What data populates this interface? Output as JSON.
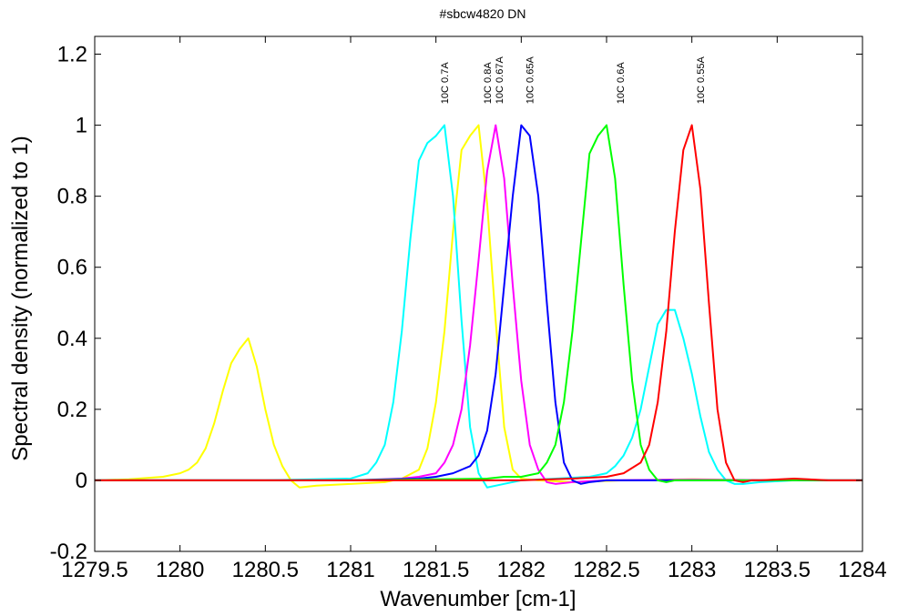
{
  "chart_data": {
    "type": "line",
    "title": "#sbcw4820 DN",
    "xlabel": "Wavenumber [cm-1]",
    "ylabel": "Spectral density (normalized to 1)",
    "xlim": [
      1279.5,
      1284
    ],
    "ylim": [
      -0.2,
      1.25
    ],
    "xticks": [
      1279.5,
      1280,
      1280.5,
      1281,
      1281.5,
      1282,
      1282.5,
      1283,
      1283.5,
      1284
    ],
    "xtick_labels": [
      "1279.5",
      "1280",
      "1280.5",
      "1281",
      "1281.5",
      "1282",
      "1282.5",
      "1283",
      "1283.5",
      "1284"
    ],
    "yticks": [
      -0.2,
      0,
      0.2,
      0.4,
      0.6,
      0.8,
      1,
      1.2
    ],
    "ytick_labels": [
      "-0.2",
      "0",
      "0.2",
      "0.4",
      "0.6",
      "0.8",
      "1",
      "1.2"
    ],
    "grid": false,
    "legend": "none",
    "annotations": [
      {
        "text": "10C 0.7A",
        "x": 1281.55,
        "y": 1.06
      },
      {
        "text": "10C 0.8A",
        "x": 1281.8,
        "y": 1.06
      },
      {
        "text": "10C 0.67A",
        "x": 1281.87,
        "y": 1.06
      },
      {
        "text": "10C 0.65A",
        "x": 1282.05,
        "y": 1.06
      },
      {
        "text": "10C 0.6A",
        "x": 1282.58,
        "y": 1.06
      },
      {
        "text": "10C 0.55A",
        "x": 1283.05,
        "y": 1.06
      }
    ],
    "series": [
      {
        "color": "#ffff00",
        "x": [
          1279.5,
          1279.7,
          1279.9,
          1280.0,
          1280.05,
          1280.1,
          1280.15,
          1280.2,
          1280.25,
          1280.3,
          1280.35,
          1280.4,
          1280.45,
          1280.5,
          1280.55,
          1280.6,
          1280.65,
          1280.7,
          1280.8,
          1281.0,
          1281.2,
          1281.3,
          1281.4,
          1281.45,
          1281.5,
          1281.55,
          1281.6,
          1281.65,
          1281.7,
          1281.75,
          1281.8,
          1281.85,
          1281.9,
          1281.95,
          1282.0,
          1282.1,
          1282.3,
          1282.6,
          1283.0,
          1283.5,
          1284.0
        ],
        "y": [
          0.0,
          0.003,
          0.01,
          0.02,
          0.03,
          0.05,
          0.09,
          0.16,
          0.25,
          0.33,
          0.37,
          0.4,
          0.32,
          0.2,
          0.1,
          0.04,
          0.0,
          -0.02,
          -0.015,
          -0.01,
          -0.005,
          0.005,
          0.03,
          0.09,
          0.22,
          0.42,
          0.7,
          0.93,
          0.97,
          1.0,
          0.78,
          0.45,
          0.15,
          0.03,
          0.005,
          0.0,
          -0.005,
          0.0,
          0.003,
          0.0,
          0.0
        ]
      },
      {
        "color": "#00ffff",
        "x": [
          1279.5,
          1280.0,
          1280.5,
          1281.0,
          1281.1,
          1281.15,
          1281.2,
          1281.25,
          1281.3,
          1281.35,
          1281.4,
          1281.45,
          1281.5,
          1281.55,
          1281.6,
          1281.65,
          1281.7,
          1281.75,
          1281.8,
          1281.9,
          1282.0,
          1282.2,
          1282.4,
          1282.5,
          1282.55,
          1282.6,
          1282.65,
          1282.7,
          1282.75,
          1282.8,
          1282.85,
          1282.9,
          1282.95,
          1283.0,
          1283.05,
          1283.1,
          1283.15,
          1283.2,
          1283.25,
          1283.3,
          1283.4,
          1283.6,
          1284.0
        ],
        "y": [
          0.0,
          0.0,
          0.0,
          0.005,
          0.02,
          0.05,
          0.1,
          0.22,
          0.42,
          0.68,
          0.9,
          0.95,
          0.97,
          1.0,
          0.8,
          0.45,
          0.15,
          0.02,
          -0.02,
          -0.01,
          0.0,
          0.005,
          0.01,
          0.02,
          0.04,
          0.07,
          0.12,
          0.2,
          0.32,
          0.44,
          0.48,
          0.48,
          0.4,
          0.3,
          0.18,
          0.08,
          0.03,
          0.0,
          -0.01,
          -0.01,
          -0.005,
          0.0,
          0.0
        ]
      },
      {
        "color": "#ff00ff",
        "x": [
          1279.5,
          1280.0,
          1280.5,
          1281.0,
          1281.3,
          1281.4,
          1281.5,
          1281.55,
          1281.6,
          1281.65,
          1281.7,
          1281.75,
          1281.8,
          1281.85,
          1281.9,
          1281.95,
          1282.0,
          1282.05,
          1282.1,
          1282.15,
          1282.2,
          1282.3,
          1282.5,
          1283.0,
          1283.5,
          1284.0
        ],
        "y": [
          0.0,
          0.0,
          0.0,
          0.0,
          0.005,
          0.01,
          0.02,
          0.05,
          0.1,
          0.2,
          0.38,
          0.62,
          0.87,
          1.0,
          0.85,
          0.55,
          0.28,
          0.1,
          0.03,
          -0.005,
          -0.01,
          -0.005,
          0.0,
          0.002,
          0.0,
          0.0
        ]
      },
      {
        "color": "#0000ff",
        "x": [
          1279.5,
          1280.0,
          1281.0,
          1281.4,
          1281.5,
          1281.6,
          1281.7,
          1281.75,
          1281.8,
          1281.85,
          1281.9,
          1281.95,
          1282.0,
          1282.05,
          1282.1,
          1282.15,
          1282.2,
          1282.25,
          1282.3,
          1282.35,
          1282.4,
          1282.5,
          1282.7,
          1283.0,
          1284.0
        ],
        "y": [
          0.0,
          0.0,
          0.0,
          0.005,
          0.01,
          0.02,
          0.04,
          0.07,
          0.14,
          0.3,
          0.55,
          0.8,
          1.0,
          0.97,
          0.8,
          0.5,
          0.22,
          0.05,
          0.0,
          -0.01,
          -0.005,
          0.0,
          0.0,
          0.0,
          0.0
        ]
      },
      {
        "color": "#00ff00",
        "x": [
          1279.5,
          1280.5,
          1281.0,
          1281.5,
          1281.8,
          1281.9,
          1282.0,
          1282.1,
          1282.15,
          1282.2,
          1282.25,
          1282.3,
          1282.35,
          1282.4,
          1282.45,
          1282.5,
          1282.55,
          1282.6,
          1282.65,
          1282.7,
          1282.75,
          1282.8,
          1282.85,
          1282.9,
          1283.0,
          1283.5,
          1284.0
        ],
        "y": [
          0.0,
          0.0,
          0.0,
          0.003,
          0.005,
          0.01,
          0.01,
          0.02,
          0.05,
          0.1,
          0.22,
          0.42,
          0.67,
          0.92,
          0.97,
          1.0,
          0.85,
          0.55,
          0.28,
          0.1,
          0.03,
          0.0,
          -0.005,
          0.0,
          0.0,
          0.0,
          0.0
        ]
      },
      {
        "color": "#ff0000",
        "x": [
          1279.5,
          1280.0,
          1281.0,
          1282.0,
          1282.3,
          1282.5,
          1282.6,
          1282.7,
          1282.75,
          1282.8,
          1282.85,
          1282.9,
          1282.95,
          1283.0,
          1283.05,
          1283.1,
          1283.15,
          1283.2,
          1283.25,
          1283.3,
          1283.35,
          1283.4,
          1283.6,
          1283.8,
          1284.0
        ],
        "y": [
          0.0,
          0.0,
          0.0,
          0.0,
          0.005,
          0.01,
          0.02,
          0.05,
          0.1,
          0.22,
          0.42,
          0.7,
          0.93,
          1.0,
          0.82,
          0.5,
          0.2,
          0.05,
          0.0,
          -0.005,
          0.0,
          0.0,
          0.005,
          0.0,
          0.0
        ]
      }
    ]
  }
}
